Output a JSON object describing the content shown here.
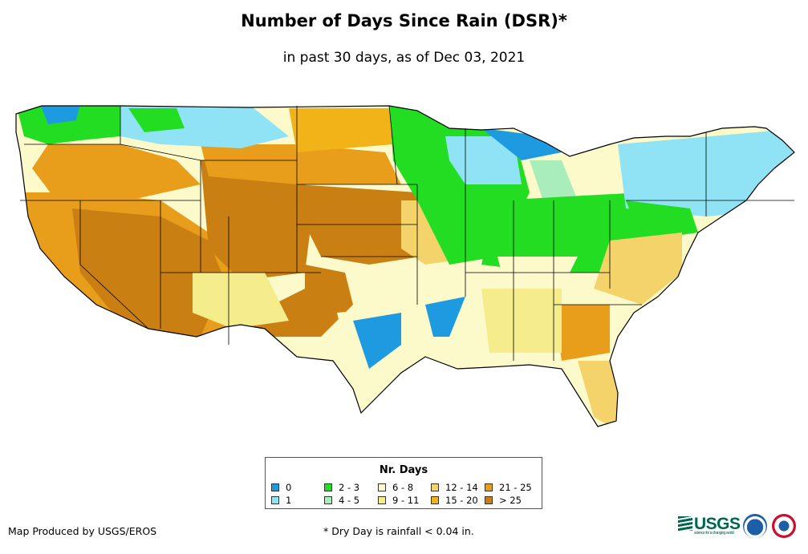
{
  "title": "Number of Days Since Rain (DSR)*",
  "subtitle": "in past 30 days, as of Dec 03, 2021",
  "legend": {
    "title": "Nr. Days",
    "items": [
      {
        "label": "0",
        "color": "#1e9be0"
      },
      {
        "label": "1",
        "color": "#8fe3f5"
      },
      {
        "label": "2 - 3",
        "color": "#22dd22"
      },
      {
        "label": "4 - 5",
        "color": "#a8edba"
      },
      {
        "label": "6 - 8",
        "color": "#fcfacb"
      },
      {
        "label": "9 - 11",
        "color": "#f5ec8c"
      },
      {
        "label": "12 - 14",
        "color": "#f4d36a"
      },
      {
        "label": "15 - 20",
        "color": "#f2b318"
      },
      {
        "label": "21 - 25",
        "color": "#e89e1a"
      },
      {
        "label": "> 25",
        "color": "#c97f11"
      }
    ]
  },
  "footer": {
    "credit": "Map Produced by USGS/EROS",
    "footnote": "* Dry Day is rainfall < 0.04 in.",
    "logo_usgs": "USGS",
    "logo_usgs_tagline": "science for a changing world"
  },
  "map": {
    "region": "Contiguous United States",
    "regions": [
      {
        "area": "Pacific Northwest coast",
        "category": "0"
      },
      {
        "area": "Northern Rockies / Montana",
        "category": "1"
      },
      {
        "area": "Upper Midwest",
        "category": "2 - 3"
      },
      {
        "area": "Great Basin / Southwest",
        "category": "> 25"
      },
      {
        "area": "Central Plains",
        "category": "21 - 25"
      },
      {
        "area": "Texas / Gulf",
        "category": "6 - 8"
      },
      {
        "area": "Northeast",
        "category": "1"
      },
      {
        "area": "Ohio Valley",
        "category": "2 - 3"
      },
      {
        "area": "Southeast",
        "category": "9 - 11"
      },
      {
        "area": "Georgia / Carolinas",
        "category": "21 - 25"
      }
    ]
  }
}
